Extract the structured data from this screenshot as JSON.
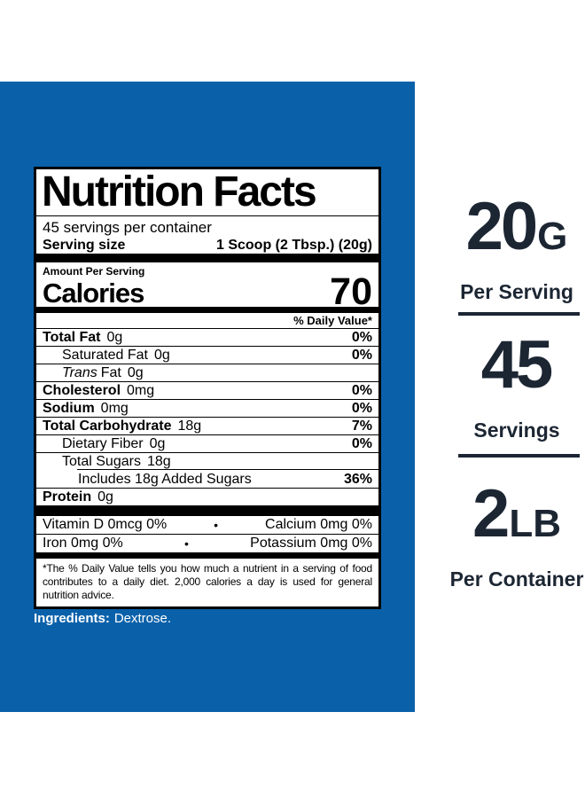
{
  "colors": {
    "panel_blue": "#0a61aa",
    "accent_navy": "#1c2633",
    "label_black": "#000000",
    "label_white": "#ffffff"
  },
  "nutrition_label": {
    "title": "Nutrition Facts",
    "servings_per_container": "45 servings per container",
    "serving_size_label": "Serving size",
    "serving_size_value": "1 Scoop (2 Tbsp.) (20g)",
    "amount_per_serving": "Amount Per Serving",
    "calories_label": "Calories",
    "calories_value": "70",
    "daily_value_header": "% Daily Value*",
    "rows": [
      {
        "italic": "",
        "name": "Total Fat",
        "amount": "0g",
        "dv": "0%"
      },
      {
        "italic": "",
        "name": "Saturated Fat",
        "amount": "0g",
        "dv": "0%"
      },
      {
        "italic": "Trans",
        "name": "Fat",
        "amount": "0g",
        "dv": ""
      },
      {
        "italic": "",
        "name": "Cholesterol",
        "amount": "0mg",
        "dv": "0%"
      },
      {
        "italic": "",
        "name": "Sodium",
        "amount": "0mg",
        "dv": "0%"
      },
      {
        "italic": "",
        "name": "Total Carbohydrate",
        "amount": "18g",
        "dv": "7%"
      },
      {
        "italic": "",
        "name": "Dietary Fiber",
        "amount": "0g",
        "dv": "0%"
      },
      {
        "italic": "",
        "name": "Total Sugars",
        "amount": "18g",
        "dv": ""
      },
      {
        "italic": "",
        "name": "Includes 18g Added Sugars",
        "amount": "",
        "dv": "36%"
      },
      {
        "italic": "",
        "name": "Protein",
        "amount": "0g",
        "dv": ""
      }
    ],
    "bullet": "•",
    "micronutrient_rows": [
      {
        "left": "Vitamin D  0mcg  0%",
        "right": "Calcium  0mg  0%"
      },
      {
        "left": "Iron  0mg  0%",
        "right": "Potassium  0mg  0%"
      }
    ],
    "footnote": "*The % Daily Value tells you how much a nutrient in a serving of food contributes to a daily diet.  2,000 calories a day is used for general nutrition advice."
  },
  "ingredients": {
    "label": "Ingredients:",
    "value": "Dextrose."
  },
  "highlights": [
    {
      "value": "20",
      "unit": "G",
      "caption": "Per Serving"
    },
    {
      "value": "45",
      "unit": "",
      "caption": "Servings"
    },
    {
      "value": "2",
      "unit": "LB",
      "caption": "Per Container"
    }
  ]
}
